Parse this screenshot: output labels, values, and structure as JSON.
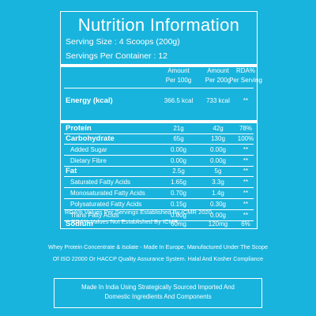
{
  "title": "Nutrition Information",
  "serving_size": "Serving Size : 4 Scoops (200g)",
  "servings_per_container": "Servings Per Container : 12",
  "columns": {
    "col1_line1": "Amount",
    "col1_line2": "Per 100g",
    "col2_line1": "Amount",
    "col2_line2": "Per 200g",
    "col3_line1": "RDA%",
    "col3_line2": "Per Serving"
  },
  "rows": [
    {
      "label": "Energy (kcal)",
      "per100": "366.5 kcal",
      "per200": "733 kcal",
      "rda": "**"
    },
    {
      "label": "Protein",
      "per100": "21g",
      "per200": "42g",
      "rda": "78%"
    },
    {
      "label": "Carbohydrate",
      "per100": "65g",
      "per200": "130g",
      "rda": "100%"
    },
    {
      "label": "Added Sugar",
      "per100": "0.00g",
      "per200": "0.00g",
      "rda": "**"
    },
    {
      "label": "Dietary Fibre",
      "per100": "0.00g",
      "per200": "0.00g",
      "rda": "**"
    },
    {
      "label": "Fat",
      "per100": "2.5g",
      "per200": "5g",
      "rda": "**"
    },
    {
      "label": "Saturated Fatty Acids",
      "per100": "1.65g",
      "per200": "3.3g",
      "rda": "**"
    },
    {
      "label": "Monosaturated Fatty Acids",
      "per100": "0.70g",
      "per200": "1.4g",
      "rda": "**"
    },
    {
      "label": "Polysaturated Fatty Acids",
      "per100": "0.15g",
      "per200": "0.30g",
      "rda": "**"
    },
    {
      "label": "Trans Fatty Acids",
      "per100": "0.00g",
      "per200": "0.00g",
      "rda": "**"
    },
    {
      "label": "Sodium",
      "per100": "60mg",
      "per200": "120mg",
      "rda": "6%"
    }
  ],
  "footnote1": "RDA%  Values Per Servings Established By ICMR 2020.",
  "footnote2": "** RDA%  Values Not Established By ICMR.",
  "credits_line1": "Whey Protein Concentrate & Isolate - Made In Europe, Manufactured Under The Scope",
  "credits_line2": "Of ISO 22000 Or HACCP Quality Assurance System. Halal And Kosher Compliance",
  "made_line1": "Made In India Using Strategically Sourced Imported And",
  "made_line2": "Domestic Ingredients And Components",
  "colors": {
    "background": "#19b4dd",
    "foreground": "#ffffff"
  }
}
